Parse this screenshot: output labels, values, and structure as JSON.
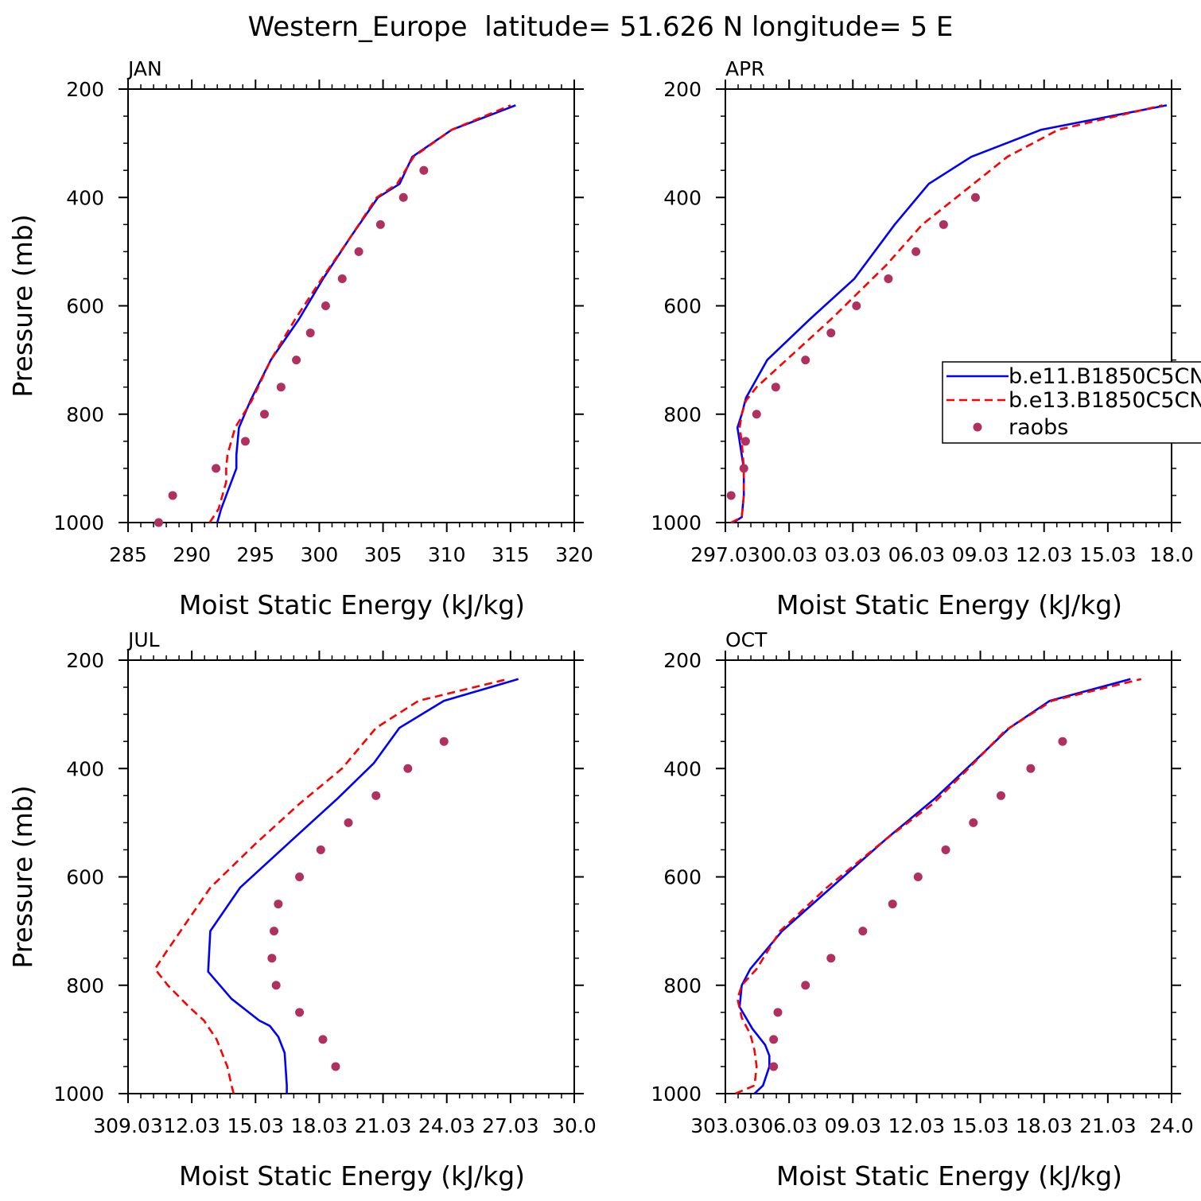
{
  "title": "Western_Europe  latitude= 51.626 N longitude= 5 E",
  "colors": {
    "model1": "#0000ff",
    "model2": "#ff0000",
    "obs": "#b03060",
    "axis": "#000000"
  },
  "legend": {
    "placement": "right of APR panel",
    "entries": [
      {
        "label": "b.e11.B1850C5CN",
        "style": "solid",
        "color": "#0000ff"
      },
      {
        "label": "b.e13.B1850C5CN",
        "style": "dashed",
        "color": "#ff0000"
      },
      {
        "label": "raobs",
        "style": "marker",
        "color": "#b03060"
      }
    ]
  },
  "chart_data": [
    {
      "type": "line",
      "panel": "JAN",
      "title": "JAN",
      "xlabel": "Moist Static Energy (kJ/kg)",
      "ylabel": "Pressure (mb)",
      "xlim": [
        285,
        320
      ],
      "ylim": [
        1000,
        200
      ],
      "xticks": [
        285,
        290,
        295,
        300,
        305,
        310,
        315,
        320
      ],
      "xtick_labels": [
        "285",
        "290",
        "295",
        "300",
        "305",
        "310",
        "315",
        "320"
      ],
      "yticks": [
        1000,
        800,
        600,
        400,
        200
      ],
      "ytick_labels": [
        "1000",
        "800",
        "600",
        "400",
        "200"
      ],
      "series": [
        {
          "name": "b.e11.B1850C5CN",
          "style": "solid",
          "x": [
            292.0,
            292.3,
            293.1,
            293.5,
            293.5,
            293.7,
            294.6,
            296.2,
            298.4,
            300.3,
            302.4,
            304.6,
            306.3,
            307.3,
            310.4,
            315.4
          ],
          "y": [
            1000,
            975,
            925,
            900,
            875,
            825,
            775,
            700,
            625,
            550,
            475,
            400,
            375,
            325,
            275,
            230
          ]
        },
        {
          "name": "b.e13.B1850C5CN",
          "style": "dashed",
          "x": [
            291.4,
            292.1,
            292.7,
            292.7,
            292.8,
            293.4,
            294.7,
            296.2,
            298.1,
            300.2,
            302.4,
            304.5,
            306.1,
            307.4,
            310.4,
            315.0
          ],
          "y": [
            1000,
            975,
            925,
            900,
            875,
            825,
            775,
            700,
            625,
            550,
            475,
            400,
            375,
            325,
            275,
            230
          ]
        },
        {
          "name": "raobs",
          "style": "marker",
          "x": [
            287.4,
            288.5,
            291.9,
            294.2,
            295.7,
            297.0,
            298.2,
            299.3,
            300.5,
            301.8,
            303.1,
            304.8,
            306.6,
            308.2
          ],
          "y": [
            1000,
            950,
            900,
            850,
            800,
            750,
            700,
            650,
            600,
            550,
            500,
            450,
            400,
            350
          ]
        }
      ]
    },
    {
      "type": "line",
      "panel": "APR",
      "title": "APR",
      "xlabel": "Moist Static Energy (kJ/kg)",
      "ylabel": "",
      "xlim": [
        297.03,
        318.03
      ],
      "ylim": [
        1000,
        200
      ],
      "xticks": [
        297.03,
        300.03,
        303.03,
        306.03,
        309.03,
        312.03,
        315.03,
        318.03
      ],
      "xtick_labels": [
        "297.03",
        "00.03",
        "03.03",
        "06.03",
        "09.03",
        "12.03",
        "15.03",
        "18.0"
      ],
      "yticks": [
        1000,
        800,
        600,
        400,
        200
      ],
      "ytick_labels": [
        "1000",
        "800",
        "600",
        "400",
        "200"
      ],
      "series": [
        {
          "name": "b.e11.B1850C5CN",
          "style": "solid",
          "x": [
            297.4,
            297.8,
            297.9,
            297.9,
            297.7,
            297.6,
            297.8,
            298.0,
            299.0,
            301.0,
            303.1,
            305.0,
            306.6,
            308.6,
            311.9,
            317.8
          ],
          "y": [
            1000,
            990,
            950,
            900,
            850,
            825,
            800,
            770,
            700,
            625,
            550,
            450,
            375,
            325,
            275,
            230
          ]
        },
        {
          "name": "b.e13.B1850C5CN",
          "style": "dashed",
          "x": [
            297.3,
            297.8,
            297.9,
            297.9,
            297.8,
            297.7,
            297.8,
            298.0,
            298.5,
            299.9,
            302.0,
            304.6,
            306.3,
            307.9,
            310.3,
            312.7,
            317.6
          ],
          "y": [
            1000,
            990,
            950,
            900,
            850,
            825,
            800,
            775,
            750,
            700,
            625,
            525,
            450,
            400,
            325,
            275,
            230
          ]
        },
        {
          "name": "raobs",
          "style": "marker",
          "x": [
            297.3,
            297.9,
            297.98,
            298.5,
            299.4,
            300.8,
            302.0,
            303.2,
            304.7,
            306.0,
            307.3,
            308.8
          ],
          "y": [
            950,
            900,
            850,
            800,
            750,
            700,
            650,
            600,
            550,
            500,
            450,
            400
          ]
        }
      ]
    },
    {
      "type": "line",
      "panel": "JUL",
      "title": "JUL",
      "xlabel": "Moist Static Energy (kJ/kg)",
      "ylabel": "Pressure (mb)",
      "xlim": [
        309.03,
        330.03
      ],
      "ylim": [
        1000,
        200
      ],
      "xticks": [
        309.03,
        312.03,
        315.03,
        318.03,
        321.03,
        324.03,
        327.03,
        330.03
      ],
      "xtick_labels": [
        "309.03",
        "12.03",
        "15.03",
        "18.03",
        "21.03",
        "24.03",
        "27.03",
        "30.0"
      ],
      "yticks": [
        1000,
        800,
        600,
        400,
        200
      ],
      "ytick_labels": [
        "1000",
        "800",
        "600",
        "400",
        "200"
      ],
      "series": [
        {
          "name": "b.e11.B1850C5CN",
          "style": "solid",
          "x": [
            316.5,
            316.5,
            316.4,
            316.1,
            315.7,
            315.2,
            313.9,
            312.8,
            312.9,
            314.3,
            316.8,
            318.9,
            320.6,
            321.8,
            323.9,
            327.4
          ],
          "y": [
            1000,
            985,
            925,
            895,
            875,
            865,
            825,
            775,
            700,
            620,
            530,
            455,
            390,
            325,
            275,
            235
          ]
        },
        {
          "name": "b.e13.B1850C5CN",
          "style": "dashed",
          "x": [
            314.0,
            313.9,
            313.7,
            313.2,
            312.6,
            311.9,
            310.9,
            310.3,
            310.8,
            311.5,
            312.9,
            315.0,
            317.1,
            319.1,
            320.7,
            322.7,
            326.9
          ],
          "y": [
            1000,
            985,
            950,
            900,
            865,
            840,
            800,
            770,
            740,
            700,
            620,
            540,
            465,
            400,
            325,
            275,
            235
          ]
        },
        {
          "name": "raobs",
          "style": "marker",
          "x": [
            318.8,
            318.2,
            317.1,
            316.0,
            315.8,
            315.9,
            316.1,
            317.1,
            318.1,
            319.4,
            320.7,
            322.2,
            323.9
          ],
          "y": [
            950,
            900,
            850,
            800,
            750,
            700,
            650,
            600,
            550,
            500,
            450,
            400,
            350
          ]
        }
      ]
    },
    {
      "type": "line",
      "panel": "OCT",
      "title": "OCT",
      "xlabel": "Moist Static Energy (kJ/kg)",
      "ylabel": "",
      "xlim": [
        303.03,
        324.03
      ],
      "ylim": [
        1000,
        200
      ],
      "xticks": [
        303.03,
        306.03,
        309.03,
        312.03,
        315.03,
        318.03,
        321.03,
        324.03
      ],
      "xtick_labels": [
        "303.03",
        "06.03",
        "09.03",
        "12.03",
        "15.03",
        "18.03",
        "21.03",
        "24.0"
      ],
      "yticks": [
        1000,
        800,
        600,
        400,
        200
      ],
      "ytick_labels": [
        "1000",
        "800",
        "600",
        "400",
        "200"
      ],
      "series": [
        {
          "name": "b.e11.B1850C5CN",
          "style": "solid",
          "x": [
            304.4,
            304.8,
            305.1,
            305.1,
            304.9,
            304.3,
            303.7,
            303.8,
            304.2,
            305.7,
            308.0,
            310.6,
            312.9,
            314.8,
            316.4,
            318.3,
            322.1
          ],
          "y": [
            1000,
            985,
            950,
            930,
            910,
            880,
            840,
            800,
            770,
            700,
            620,
            530,
            455,
            385,
            325,
            275,
            235
          ]
        },
        {
          "name": "b.e13.B1850C5CN",
          "style": "dashed",
          "x": [
            303.5,
            304.4,
            304.5,
            304.4,
            304.2,
            303.8,
            303.6,
            303.8,
            304.5,
            305.6,
            307.8,
            310.6,
            312.8,
            314.6,
            316.2,
            318.4,
            322.6
          ],
          "y": [
            1000,
            985,
            950,
            920,
            890,
            860,
            825,
            800,
            770,
            700,
            620,
            530,
            465,
            395,
            330,
            275,
            235
          ]
        },
        {
          "name": "raobs",
          "style": "marker",
          "x": [
            305.3,
            305.3,
            305.5,
            306.8,
            308.0,
            309.5,
            310.9,
            312.1,
            313.4,
            314.7,
            316.0,
            317.4,
            318.9
          ],
          "y": [
            950,
            900,
            850,
            800,
            750,
            700,
            650,
            600,
            550,
            500,
            450,
            400,
            350
          ]
        }
      ]
    }
  ]
}
